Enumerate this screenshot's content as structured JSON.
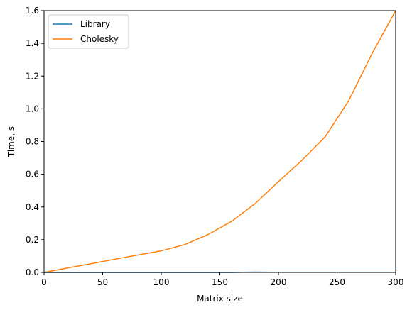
{
  "chart_data": {
    "type": "line",
    "title": "",
    "xlabel": "Matrix size",
    "ylabel": "Time, s",
    "xlim": [
      0,
      300
    ],
    "ylim": [
      0,
      1.6
    ],
    "xticks": [
      0,
      50,
      100,
      150,
      200,
      250,
      300
    ],
    "xtick_labels": [
      "0",
      "50",
      "100",
      "150",
      "200",
      "250",
      "300"
    ],
    "yticks": [
      0.0,
      0.2,
      0.4,
      0.6,
      0.8,
      1.0,
      1.2,
      1.4,
      1.6
    ],
    "ytick_labels": [
      "0.0",
      "0.2",
      "0.4",
      "0.6",
      "0.8",
      "1.0",
      "1.2",
      "1.4",
      "1.6"
    ],
    "grid": false,
    "legend_position": "upper-left",
    "x": [
      0,
      20,
      40,
      60,
      80,
      100,
      120,
      140,
      160,
      180,
      200,
      220,
      240,
      260,
      280,
      300
    ],
    "series": [
      {
        "name": "Library",
        "color": "#1f77b4",
        "values": [
          0.0,
          0.0,
          0.0,
          0.0,
          0.0,
          0.0,
          0.0,
          0.0,
          0.0,
          0.002,
          0.001,
          0.001,
          0.001,
          0.001,
          0.001,
          0.001
        ]
      },
      {
        "name": "Cholesky",
        "color": "#ff7f0e",
        "values": [
          0.0,
          0.027,
          0.053,
          0.08,
          0.106,
          0.132,
          0.17,
          0.232,
          0.312,
          0.42,
          0.555,
          0.685,
          0.83,
          1.05,
          1.34,
          1.6
        ]
      }
    ]
  }
}
